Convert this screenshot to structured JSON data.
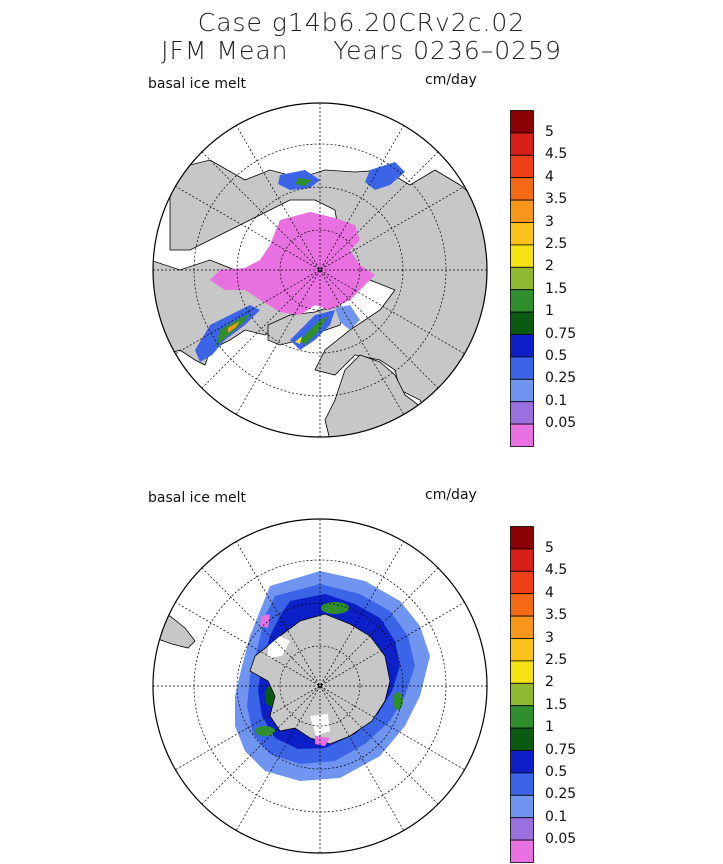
{
  "title": {
    "line1": "Case g14b6.20CRv2c.02",
    "line2": "JFM Mean     Years 0236–0259"
  },
  "panels": [
    {
      "id": "north",
      "variable": "basal ice melt",
      "units": "cm/day",
      "hemisphere": "Northern"
    },
    {
      "id": "south",
      "variable": "basal ice melt",
      "units": "cm/day",
      "hemisphere": "Southern"
    }
  ],
  "colorbar": {
    "levels": [
      "5",
      "4.5",
      "4",
      "3.5",
      "3",
      "2.5",
      "2",
      "1.5",
      "1",
      "0.75",
      "0.5",
      "0.25",
      "0.1",
      "0.05"
    ],
    "colors": [
      "#8b0000",
      "#d8201a",
      "#f0401a",
      "#f46a14",
      "#f7961a",
      "#fbc21c",
      "#f6e213",
      "#8fb830",
      "#2e8f2c",
      "#0b5a14",
      "#0c20c8",
      "#3c64e6",
      "#6f95f0",
      "#9a6fe0",
      "#e870e0"
    ]
  },
  "colors": {
    "land": "#c7c7c7",
    "ocean": "#ffffff",
    "ice_melt_low": "#e870e0",
    "outline": "#000000"
  }
}
